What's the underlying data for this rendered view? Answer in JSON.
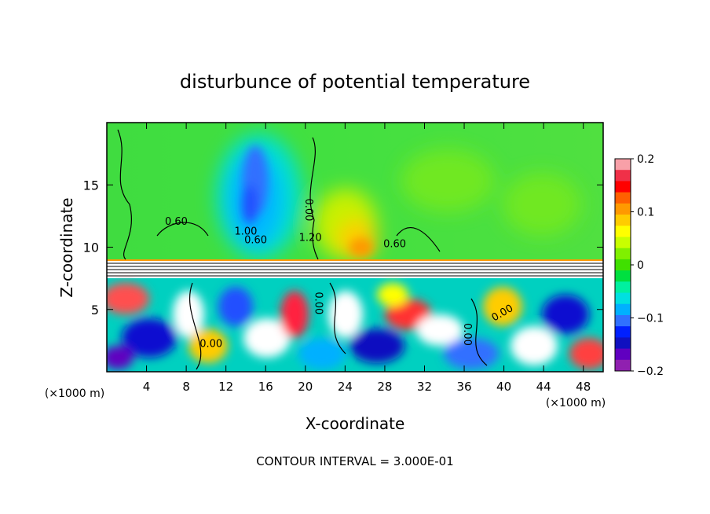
{
  "chart_data": {
    "type": "heatmap",
    "title": "disturbunce of potential temperature",
    "xlabel": "X-coordinate",
    "ylabel": "Z-coordinate",
    "x_unit_label": "(×1000 m)",
    "x_unit_label_right": "(×1000 m)",
    "xlim": [
      0,
      50
    ],
    "ylim": [
      0,
      20
    ],
    "x_ticks": [
      4,
      8,
      12,
      16,
      20,
      24,
      28,
      32,
      36,
      40,
      44,
      48
    ],
    "y_ticks": [
      5,
      10,
      15
    ],
    "colorbar": {
      "range": [
        -0.2,
        0.2
      ],
      "tick_labels": [
        "0.2",
        "0.1",
        "0",
        "−0.1",
        "−0.2"
      ],
      "tick_values": [
        0.2,
        0.1,
        0,
        -0.1,
        -0.2
      ],
      "colors": [
        "#f8a0a8",
        "#f03048",
        "#ff0000",
        "#ff6000",
        "#ff9900",
        "#ffcc00",
        "#ffff00",
        "#c8ff00",
        "#80f000",
        "#40e000",
        "#00e040",
        "#00f0a0",
        "#00e0e0",
        "#00b0ff",
        "#3070ff",
        "#0020ff",
        "#1010c0",
        "#6000c0",
        "#9020b0"
      ]
    },
    "contour_labels": [
      "0.60",
      "0.00",
      "1.00",
      "0.60",
      "1.20",
      "0.60",
      "0.00",
      "0.00",
      "0.00",
      "0.00"
    ],
    "footer": "CONTOUR INTERVAL = 3.000E-01"
  }
}
